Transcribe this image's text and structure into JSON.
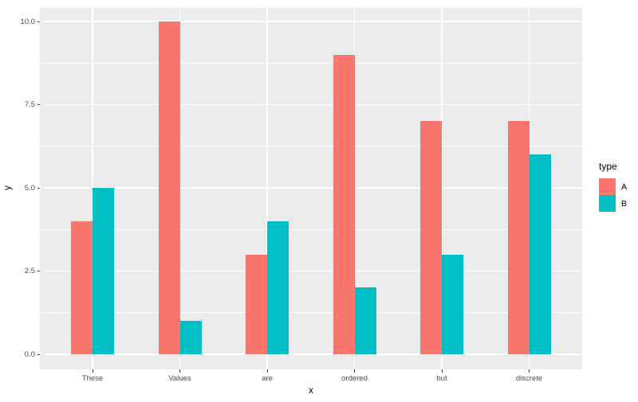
{
  "chart_data": {
    "type": "bar",
    "title": "",
    "xlabel": "x",
    "ylabel": "y",
    "categories": [
      "These",
      "Values",
      "are",
      "ordered",
      "but",
      "discrete"
    ],
    "series": [
      {
        "name": "A",
        "color": "#F8766D",
        "values": [
          4,
          10,
          3,
          9,
          7,
          7
        ]
      },
      {
        "name": "B",
        "color": "#00BFC4",
        "values": [
          5,
          1,
          4,
          2,
          3,
          6
        ]
      }
    ],
    "ylim": [
      0,
      10
    ],
    "yticks": [
      0.0,
      2.5,
      5.0,
      7.5,
      10.0
    ],
    "ytick_labels": [
      "0.0",
      "2.5",
      "5.0",
      "7.5",
      "10.0"
    ],
    "legend_title": "type",
    "legend_position": "right",
    "bar_layout": "dodge",
    "grid": "major+minor horizontal, major vertical at categories",
    "panel_bg": "#EBEBEB",
    "grid_color": "#FFFFFF",
    "tick_label_color": "#4D4D4D",
    "tick_mark_color": "#333333",
    "axis_title_color": "#000000"
  }
}
